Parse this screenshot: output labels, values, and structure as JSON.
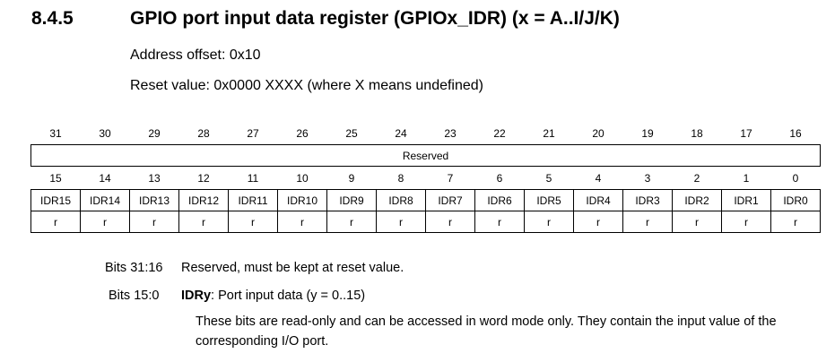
{
  "section": {
    "number": "8.4.5",
    "title": "GPIO port input data register (GPIOx_IDR) (x = A..I/J/K)",
    "address_offset": "Address offset: 0x10",
    "reset_value": "Reset value: 0x0000 XXXX (where X means undefined)"
  },
  "register": {
    "upper_bits": [
      "31",
      "30",
      "29",
      "28",
      "27",
      "26",
      "25",
      "24",
      "23",
      "22",
      "21",
      "20",
      "19",
      "18",
      "17",
      "16"
    ],
    "reserved_label": "Reserved",
    "lower_bits": [
      "15",
      "14",
      "13",
      "12",
      "11",
      "10",
      "9",
      "8",
      "7",
      "6",
      "5",
      "4",
      "3",
      "2",
      "1",
      "0"
    ],
    "fields": [
      "IDR15",
      "IDR14",
      "IDR13",
      "IDR12",
      "IDR11",
      "IDR10",
      "IDR9",
      "IDR8",
      "IDR7",
      "IDR6",
      "IDR5",
      "IDR4",
      "IDR3",
      "IDR2",
      "IDR1",
      "IDR0"
    ],
    "access": [
      "r",
      "r",
      "r",
      "r",
      "r",
      "r",
      "r",
      "r",
      "r",
      "r",
      "r",
      "r",
      "r",
      "r",
      "r",
      "r"
    ]
  },
  "bit_descriptions": [
    {
      "bits": "Bits 31:16",
      "text": "Reserved, must be kept at reset value."
    },
    {
      "bits": "Bits 15:0",
      "field": "IDRy",
      "summary": ": Port input data (y = 0..15)",
      "detail": "These bits are read-only and can be accessed in word mode only. They contain the input value of the corresponding I/O port."
    }
  ]
}
